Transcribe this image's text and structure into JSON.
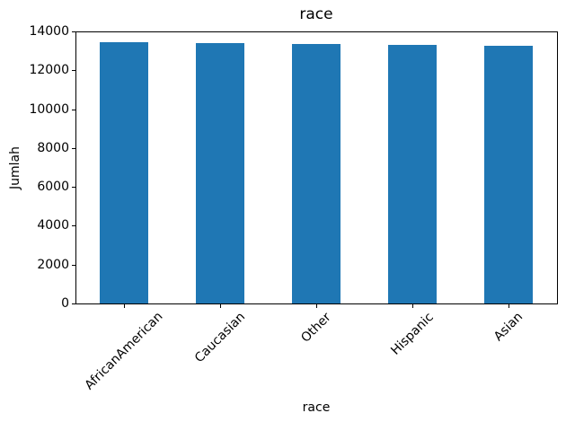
{
  "chart_data": {
    "type": "bar",
    "title": "race",
    "xlabel": "race",
    "ylabel": "Jumlah",
    "categories": [
      "AfricanAmerican",
      "Caucasian",
      "Other",
      "Hispanic",
      "Asian"
    ],
    "values": [
      13440,
      13400,
      13340,
      13330,
      13260
    ],
    "ylim": [
      0,
      14000
    ],
    "yticks": [
      0,
      2000,
      4000,
      6000,
      8000,
      10000,
      12000,
      14000
    ],
    "bar_color": "#1f77b4",
    "axis_color": "#000000",
    "background_color": "#ffffff",
    "grid": false,
    "legend_position": "none",
    "xtick_rotation_deg": 45,
    "bar_width_fraction": 0.5
  }
}
